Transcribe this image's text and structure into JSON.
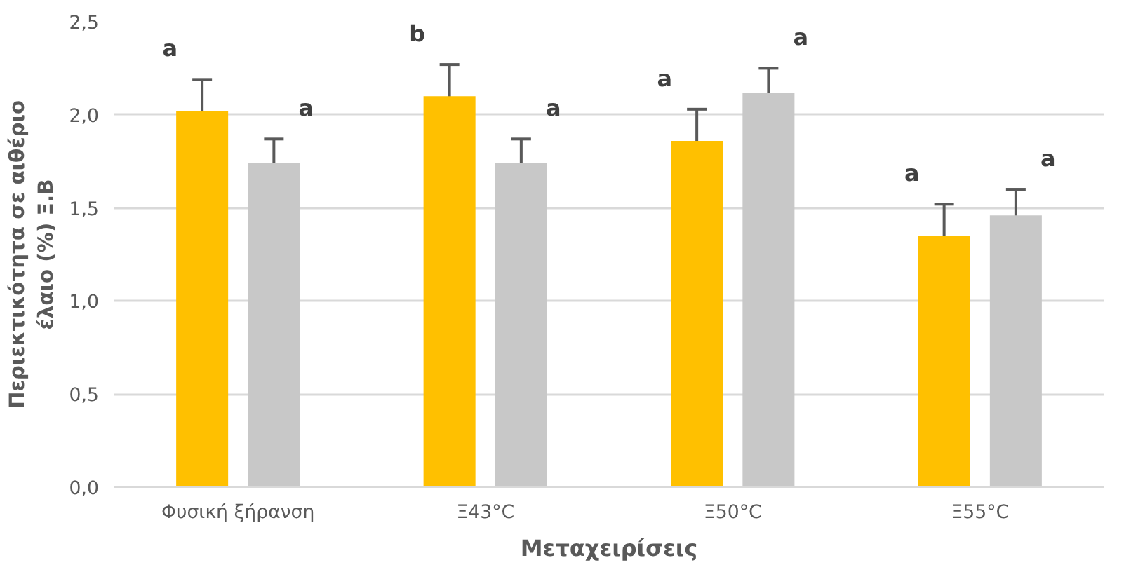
{
  "chart_data": {
    "type": "bar",
    "xlabel": "Μεταχειρίσεις",
    "ylabel": "Περιεκτικότητα σε αιθέριο\nέλαιο (%) Ξ.Β",
    "categories": [
      "Φυσική ξήρανση",
      "Ξ43°C",
      "Ξ50°C",
      "Ξ55°C"
    ],
    "series": [
      {
        "color": "#ffc000",
        "values": [
          2.02,
          2.1,
          1.86,
          1.35
        ],
        "errors": [
          0.17,
          0.17,
          0.17,
          0.17
        ]
      },
      {
        "color": "#c8c8c8",
        "values": [
          1.74,
          1.74,
          2.12,
          1.46
        ],
        "errors": [
          0.13,
          0.13,
          0.13,
          0.14
        ]
      }
    ],
    "ylim": [
      0,
      2.5
    ],
    "yticks": [
      {
        "value": 0,
        "label": "0,0"
      },
      {
        "value": 0.5,
        "label": "0,5"
      },
      {
        "value": 1,
        "label": "1,0"
      },
      {
        "value": 1.5,
        "label": "1,5"
      },
      {
        "value": 2,
        "label": "2,0"
      },
      {
        "value": 2.5,
        "label": "2,5"
      }
    ],
    "grid": "y",
    "annotations": [
      "a",
      "a",
      "b",
      "a",
      "a",
      "a",
      "a",
      "a"
    ]
  }
}
